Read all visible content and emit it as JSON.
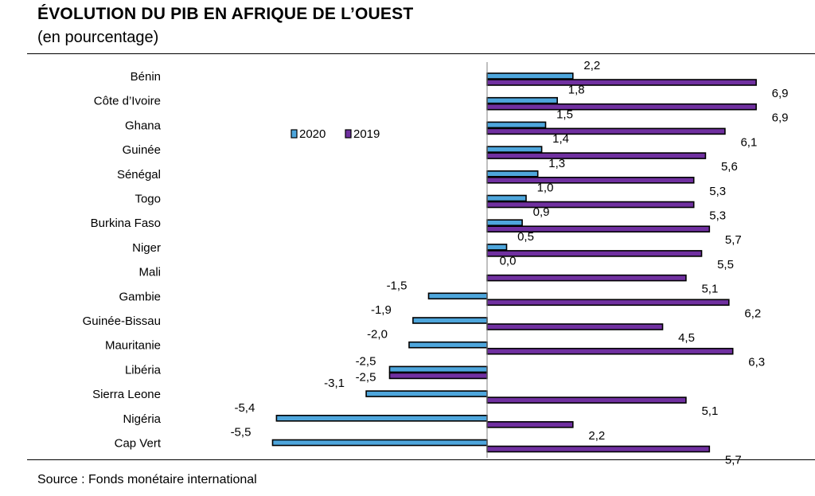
{
  "header": {
    "title": "ÉVOLUTION DU PIB EN AFRIQUE DE L’OUEST",
    "subtitle": "(en pourcentage)"
  },
  "footer": {
    "source": "Source : Fonds monétaire international"
  },
  "colors": {
    "series_2020": "#4ea6dc",
    "series_2019": "#7030a0",
    "bar_border": "#000000"
  },
  "chart_data": {
    "type": "bar",
    "orientation": "horizontal",
    "categories": [
      "Bénin",
      "Côte d’Ivoire",
      "Ghana",
      "Guinée",
      "Sénégal",
      "Togo",
      "Burkina Faso",
      "Niger",
      "Mali",
      "Gambie",
      "Guinée-Bissau",
      "Mauritanie",
      "Libéria",
      "Sierra Leone",
      "Nigéria",
      "Cap Vert"
    ],
    "series": [
      {
        "name": "2020",
        "values": [
          2.2,
          1.8,
          1.5,
          1.4,
          1.3,
          1.0,
          0.9,
          0.5,
          0.0,
          -1.5,
          -1.9,
          -2.0,
          -2.5,
          -3.1,
          -5.4,
          -5.5
        ],
        "labels": [
          "2,2",
          "1,8",
          "1,5",
          "1,4",
          "1,3",
          "1,0",
          "0,9",
          "0,5",
          "0,0",
          "-1,5",
          "-1,9",
          "-2,0",
          "-2,5",
          "-3,1",
          "-5,4",
          "-5,5"
        ]
      },
      {
        "name": "2019",
        "values": [
          6.9,
          6.9,
          6.1,
          5.6,
          5.3,
          5.3,
          5.7,
          5.5,
          5.1,
          6.2,
          4.5,
          6.3,
          -2.5,
          5.1,
          2.2,
          5.7
        ],
        "labels": [
          "6,9",
          "6,9",
          "6,1",
          "5,6",
          "5,3",
          "5,3",
          "5,7",
          "5,5",
          "5,1",
          "6,2",
          "4,5",
          "6,3",
          "-2,5",
          "5,1",
          "2,2",
          "5,7"
        ]
      }
    ],
    "legend": {
      "placement": "top-left",
      "entries": [
        "2020",
        "2019"
      ]
    },
    "grid": false
  }
}
